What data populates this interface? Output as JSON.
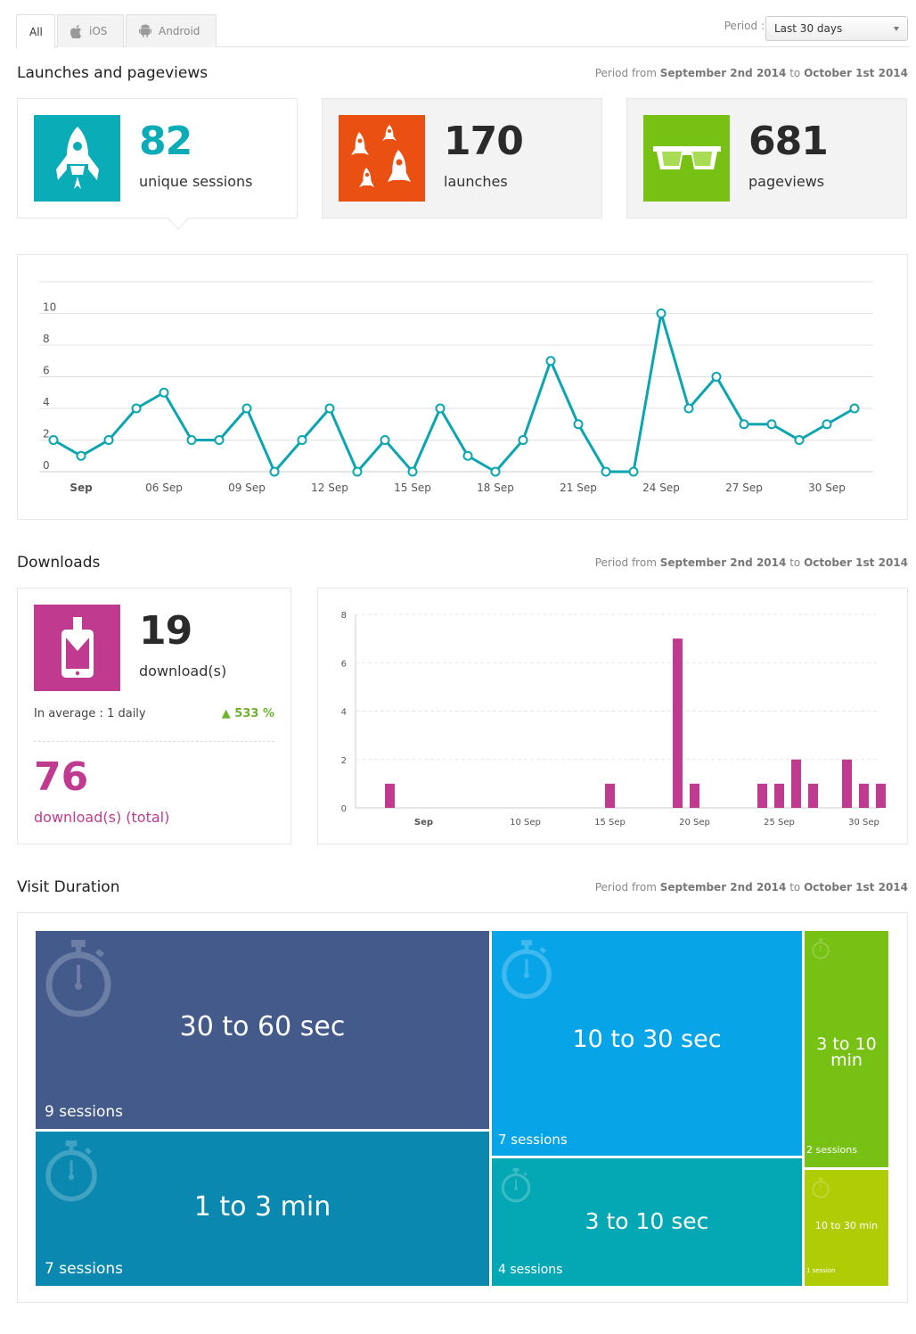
{
  "tabs": [
    {
      "label": "All",
      "icon": "",
      "active": true
    },
    {
      "label": "iOS",
      "icon": "apple-icon",
      "active": false
    },
    {
      "label": "Android",
      "icon": "android-icon",
      "active": false
    }
  ],
  "period": {
    "label": "Period :",
    "value": "Last 30 days"
  },
  "period_text": {
    "prefix": "Period from",
    "start": "September 2nd 2014",
    "mid": "to",
    "end": "October 1st 2014"
  },
  "launches": {
    "title": "Launches and pageviews",
    "cards": [
      {
        "value": "82",
        "label": "unique sessions",
        "color": "#0aacb8",
        "icon": "rocket-icon"
      },
      {
        "value": "170",
        "label": "launches",
        "color": "#ea5012",
        "icon": "rockets-icon"
      },
      {
        "value": "681",
        "label": "pageviews",
        "color": "#77c014",
        "icon": "glasses-icon"
      }
    ]
  },
  "downloads": {
    "title": "Downloads",
    "value": "19",
    "label": "download(s)",
    "average": "In average : 1 daily",
    "growth": "▲ 533 %",
    "total": "76",
    "total_label": "download(s) (total)",
    "color": "#c03b8f",
    "icon": "phone-download-icon"
  },
  "visit_duration": {
    "title": "Visit Duration",
    "blocks": [
      {
        "label": "30 to 60 sec",
        "sessions": "9 sessions",
        "color": "#435a8a"
      },
      {
        "label": "1 to 3 min",
        "sessions": "7 sessions",
        "color": "#0b88b0"
      },
      {
        "label": "10 to 30 sec",
        "sessions": "7 sessions",
        "color": "#07a4e8"
      },
      {
        "label": "3 to 10 sec",
        "sessions": "4 sessions",
        "color": "#04a8b4"
      },
      {
        "label": "3 to 10 min",
        "sessions": "2 sessions",
        "color": "#77c014"
      },
      {
        "label": "10 to 30 min",
        "sessions": "1 session",
        "color": "#b0cc05"
      }
    ]
  },
  "chart_data": [
    {
      "type": "line",
      "color": "#0aa5b0",
      "x": [
        1,
        2,
        3,
        4,
        5,
        6,
        7,
        8,
        9,
        10,
        11,
        12,
        13,
        14,
        15,
        16,
        17,
        18,
        19,
        20,
        21,
        22,
        23,
        24,
        25,
        26,
        27,
        28,
        29,
        30
      ],
      "values": [
        2,
        1,
        2,
        4,
        5,
        2,
        2,
        4,
        0,
        2,
        4,
        0,
        2,
        0,
        4,
        1,
        0,
        2,
        7,
        3,
        0,
        0,
        10,
        4,
        6,
        3,
        3,
        2,
        3,
        4
      ],
      "xtick_labels": [
        "Sep",
        "06 Sep",
        "09 Sep",
        "12 Sep",
        "15 Sep",
        "18 Sep",
        "21 Sep",
        "24 Sep",
        "27 Sep",
        "30 Sep"
      ],
      "xtick_positions": [
        2,
        5,
        8,
        11,
        14,
        17,
        20,
        23,
        26,
        29
      ],
      "ytick_labels": [
        "0",
        "2",
        "4",
        "6",
        "8",
        "10"
      ],
      "ylim": [
        0,
        12
      ],
      "grid": true
    },
    {
      "type": "bar",
      "color": "#c03b8f",
      "x": [
        2,
        15,
        19,
        20,
        24,
        25,
        26,
        27,
        29,
        30,
        31
      ],
      "values": [
        1,
        1,
        7,
        1,
        1,
        1,
        2,
        1,
        2,
        1,
        1
      ],
      "xtick_labels": [
        "Sep",
        "10 Sep",
        "15 Sep",
        "20 Sep",
        "25 Sep",
        "30 Sep"
      ],
      "xtick_positions": [
        4,
        10,
        15,
        20,
        25,
        30
      ],
      "ytick_labels": [
        "0",
        "2",
        "4",
        "6",
        "8"
      ],
      "ylim": [
        0,
        8
      ],
      "grid": true
    }
  ]
}
